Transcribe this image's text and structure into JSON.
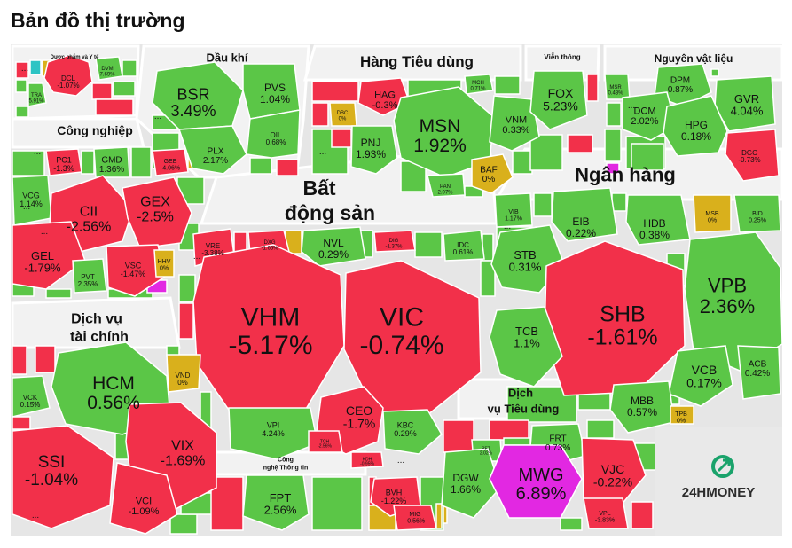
{
  "page": {
    "title": "Bản đồ thị trường"
  },
  "logo": {
    "text": "24HMONEY"
  },
  "colors": {
    "up": "#5bc647",
    "down": "#f2304a",
    "flat": "#d9b01c",
    "ceiling": "#e228e2",
    "cyan": "#2cc4c4",
    "panel": "#f2f2f2",
    "border": "#ffffff",
    "logo": "#1aa36b"
  },
  "chart_data": {
    "type": "treemap",
    "title": "Bản đồ thị trường",
    "sectors": [
      {
        "name": "Dược phẩm và Y tế",
        "lines": [
          "Dược phẩm và Y tế"
        ]
      },
      {
        "name": "Dầu khí",
        "lines": [
          "Dầu khí"
        ]
      },
      {
        "name": "Hàng Tiêu dùng",
        "lines": [
          "Hàng Tiêu dùng"
        ]
      },
      {
        "name": "Viễn thông",
        "lines": [
          "Viễn thông"
        ]
      },
      {
        "name": "Nguyên vật liệu",
        "lines": [
          "Nguyên vật liệu"
        ]
      },
      {
        "name": "Công nghiệp",
        "lines": [
          "Công nghiệp"
        ]
      },
      {
        "name": "Bất động sản",
        "lines": [
          "Bất",
          "động sản"
        ]
      },
      {
        "name": "Ngân hàng",
        "lines": [
          "Ngân hàng"
        ]
      },
      {
        "name": "Dịch vụ tài chính",
        "lines": [
          "Dịch vụ",
          "tài chính"
        ]
      },
      {
        "name": "Dịch vụ Tiêu dùng",
        "lines": [
          "Dịch",
          "vụ Tiêu dùng"
        ]
      },
      {
        "name": "Công nghệ Thông tin",
        "lines": [
          "Công",
          "nghệ Thông tin"
        ]
      }
    ],
    "tiles": [
      {
        "ticker": "DCL",
        "change": "-1.07%",
        "status": "down"
      },
      {
        "ticker": "TRA",
        "change": "5.91%",
        "status": "up"
      },
      {
        "ticker": "DVM",
        "change": "7.69%",
        "status": "up"
      },
      {
        "ticker": "BSR",
        "change": "3.49%",
        "status": "up"
      },
      {
        "ticker": "PVS",
        "change": "1.04%",
        "status": "up"
      },
      {
        "ticker": "PLX",
        "change": "2.17%",
        "status": "up"
      },
      {
        "ticker": "OIL",
        "change": "0.68%",
        "status": "up"
      },
      {
        "ticker": "HAG",
        "change": "-0.3%",
        "status": "down"
      },
      {
        "ticker": "MCH",
        "change": "0.71%",
        "status": "up"
      },
      {
        "ticker": "DBC",
        "change": "0%",
        "status": "flat"
      },
      {
        "ticker": "MSN",
        "change": "1.92%",
        "status": "up"
      },
      {
        "ticker": "VNM",
        "change": "0.33%",
        "status": "up"
      },
      {
        "ticker": "PNJ",
        "change": "1.93%",
        "status": "up"
      },
      {
        "ticker": "BAF",
        "change": "0%",
        "status": "flat"
      },
      {
        "ticker": "PAN",
        "change": "2.07%",
        "status": "up"
      },
      {
        "ticker": "FOX",
        "change": "5.23%",
        "status": "up"
      },
      {
        "ticker": "DPM",
        "change": "0.87%",
        "status": "up"
      },
      {
        "ticker": "MSR",
        "change": "0.43%",
        "status": "up"
      },
      {
        "ticker": "DCM",
        "change": "2.02%",
        "status": "up"
      },
      {
        "ticker": "GVR",
        "change": "4.04%",
        "status": "up"
      },
      {
        "ticker": "HPG",
        "change": "0.18%",
        "status": "up"
      },
      {
        "ticker": "DGC",
        "change": "-0.73%",
        "status": "down"
      },
      {
        "ticker": "PC1",
        "change": "-1.3%",
        "status": "down"
      },
      {
        "ticker": "GMD",
        "change": "1.36%",
        "status": "up"
      },
      {
        "ticker": "GEE",
        "change": "-4.06%",
        "status": "down"
      },
      {
        "ticker": "VCG",
        "change": "1.14%",
        "status": "up"
      },
      {
        "ticker": "CII",
        "change": "-2.56%",
        "status": "down"
      },
      {
        "ticker": "GEX",
        "change": "-2.5%",
        "status": "down"
      },
      {
        "ticker": "GEL",
        "change": "-1.79%",
        "status": "down"
      },
      {
        "ticker": "PVT",
        "change": "2.35%",
        "status": "up"
      },
      {
        "ticker": "VSC",
        "change": "-1.47%",
        "status": "down"
      },
      {
        "ticker": "HHV",
        "change": "0%",
        "status": "flat"
      },
      {
        "ticker": "VRE",
        "change": "-3.38%",
        "status": "down"
      },
      {
        "ticker": "DXG",
        "change": "-1.65%",
        "status": "down"
      },
      {
        "ticker": "NVL",
        "change": "0.29%",
        "status": "up"
      },
      {
        "ticker": "DIG",
        "change": "-1.37%",
        "status": "down"
      },
      {
        "ticker": "IDC",
        "change": "0.61%",
        "status": "up"
      },
      {
        "ticker": "VHM",
        "change": "-5.17%",
        "status": "down"
      },
      {
        "ticker": "VIC",
        "change": "-0.74%",
        "status": "down"
      },
      {
        "ticker": "CEO",
        "change": "-1.7%",
        "status": "down"
      },
      {
        "ticker": "VPI",
        "change": "4.24%",
        "status": "up"
      },
      {
        "ticker": "KBC",
        "change": "0.29%",
        "status": "up"
      },
      {
        "ticker": "TCH",
        "change": "-2.56%",
        "status": "down"
      },
      {
        "ticker": "KDH",
        "change": "-0.95%",
        "status": "down"
      },
      {
        "ticker": "VIB",
        "change": "1.17%",
        "status": "up"
      },
      {
        "ticker": "EIB",
        "change": "0.22%",
        "status": "up"
      },
      {
        "ticker": "HDB",
        "change": "0.38%",
        "status": "up"
      },
      {
        "ticker": "MSB",
        "change": "0%",
        "status": "flat"
      },
      {
        "ticker": "BID",
        "change": "0.25%",
        "status": "up"
      },
      {
        "ticker": "STB",
        "change": "0.31%",
        "status": "up"
      },
      {
        "ticker": "SHB",
        "change": "-1.61%",
        "status": "down"
      },
      {
        "ticker": "VPB",
        "change": "2.36%",
        "status": "up"
      },
      {
        "ticker": "TCB",
        "change": "1.1%",
        "status": "up"
      },
      {
        "ticker": "VCB",
        "change": "0.17%",
        "status": "up"
      },
      {
        "ticker": "ACB",
        "change": "0.42%",
        "status": "up"
      },
      {
        "ticker": "MBB",
        "change": "0.57%",
        "status": "up"
      },
      {
        "ticker": "TPB",
        "change": "0%",
        "status": "flat"
      },
      {
        "ticker": "HCM",
        "change": "0.56%",
        "status": "up"
      },
      {
        "ticker": "VND",
        "change": "0%",
        "status": "flat"
      },
      {
        "ticker": "VCK",
        "change": "0.15%",
        "status": "up"
      },
      {
        "ticker": "SSI",
        "change": "-1.04%",
        "status": "down"
      },
      {
        "ticker": "VIX",
        "change": "-1.69%",
        "status": "down"
      },
      {
        "ticker": "VCI",
        "change": "-1.09%",
        "status": "down"
      },
      {
        "ticker": "PET",
        "change": "2.02%",
        "status": "up"
      },
      {
        "ticker": "FRT",
        "change": "0.73%",
        "status": "up"
      },
      {
        "ticker": "DGW",
        "change": "1.66%",
        "status": "up"
      },
      {
        "ticker": "MWG",
        "change": "6.89%",
        "status": "ceiling"
      },
      {
        "ticker": "VJC",
        "change": "-0.22%",
        "status": "down"
      },
      {
        "ticker": "VPL",
        "change": "-3.83%",
        "status": "down"
      },
      {
        "ticker": "FPT",
        "change": "2.56%",
        "status": "up"
      },
      {
        "ticker": "BVH",
        "change": "-1.22%",
        "status": "down"
      },
      {
        "ticker": "MIG",
        "change": "-0.56%",
        "status": "down"
      }
    ],
    "overflow_marker": "..."
  }
}
